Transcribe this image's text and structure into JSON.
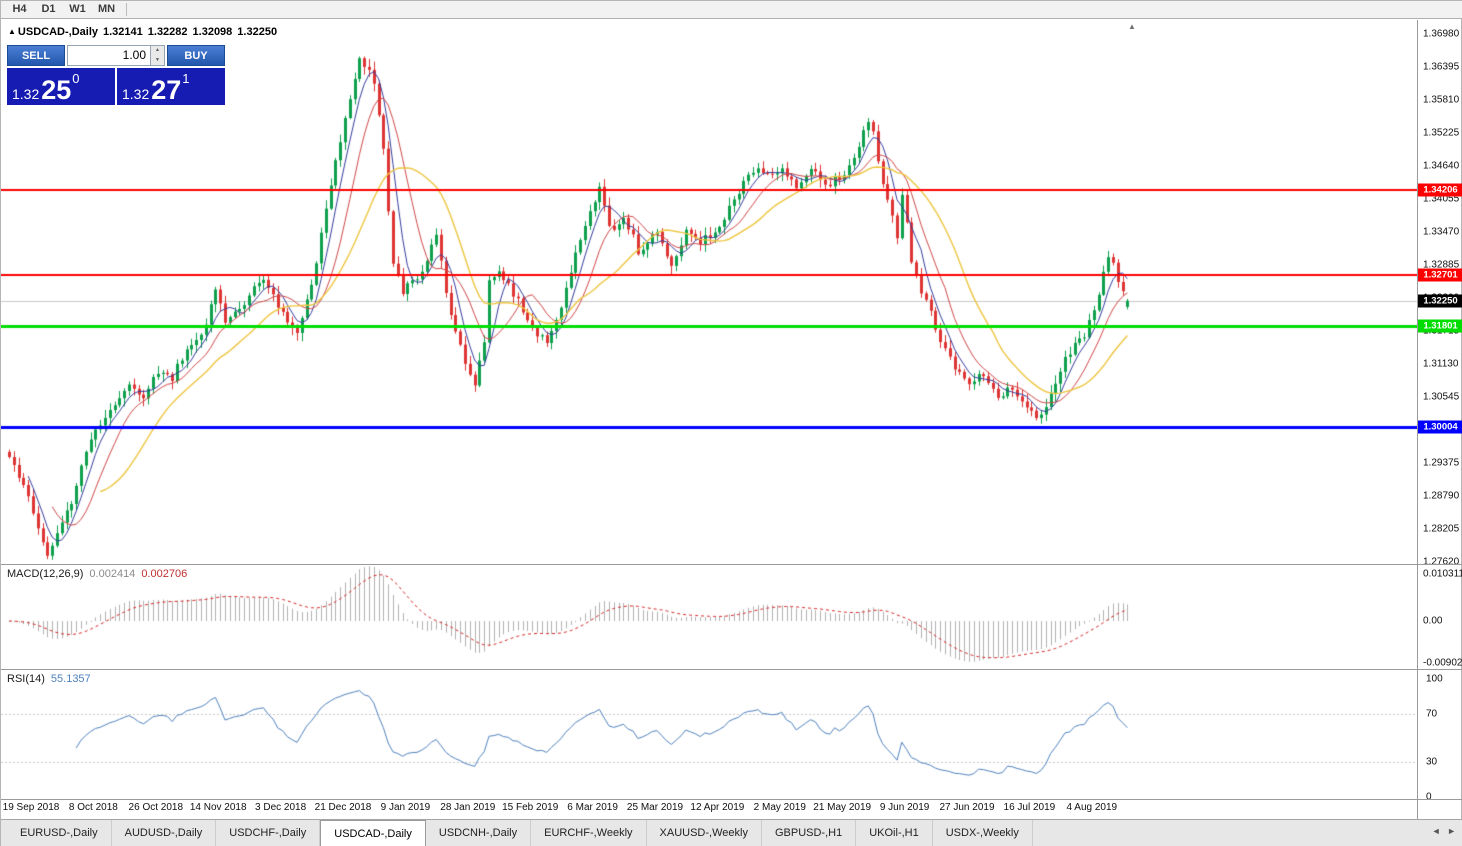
{
  "toolbar": {
    "timeframes": [
      "H4",
      "D1",
      "W1",
      "MN"
    ]
  },
  "icons": {
    "symbol_marker": "▲",
    "shift_marker": "▲",
    "spin_up": "▲",
    "spin_down": "▼",
    "tab_scroll_left": "◄",
    "tab_scroll_right": "►"
  },
  "chart": {
    "title": {
      "symbol": "USDCAD-,Daily",
      "open": "1.32141",
      "high": "1.32282",
      "low": "1.32098",
      "close": "1.32250"
    },
    "price_axis": {
      "labels": [
        "1.36980",
        "1.36395",
        "1.35810",
        "1.35225",
        "1.34640",
        "1.34055",
        "1.33470",
        "1.32885",
        "1.32300",
        "1.31715",
        "1.31130",
        "1.30545",
        "1.29960",
        "1.29375",
        "1.28790",
        "1.28205",
        "1.27620"
      ]
    },
    "hlines": [
      {
        "price": 1.34206,
        "label": "1.34206",
        "color": "#ff0000",
        "thickness": 2
      },
      {
        "price": 1.32701,
        "label": "1.32701",
        "color": "#ff0000",
        "thickness": 2
      },
      {
        "price": 1.31801,
        "label": "1.31801",
        "color": "#00dd00",
        "thickness": 3
      },
      {
        "price": 1.30004,
        "label": "1.30004",
        "color": "#0000ff",
        "thickness": 3
      }
    ],
    "current_price": {
      "value": 1.3225,
      "label": "1.32250",
      "badge_bg": "#000000",
      "line_color": "#c8c8c8"
    }
  },
  "chart_data": {
    "type": "candlestick",
    "symbol": "USDCAD",
    "timeframe": "Daily",
    "count": 234,
    "bull_color": "#0ea04c",
    "bear_color": "#de3434",
    "x_labels": [
      "19 Sep 2018",
      "8 Oct 2018",
      "26 Oct 2018",
      "14 Nov 2018",
      "3 Dec 2018",
      "21 Dec 2018",
      "9 Jan 2019",
      "28 Jan 2019",
      "15 Feb 2019",
      "6 Mar 2019",
      "25 Mar 2019",
      "12 Apr 2019",
      "2 May 2019",
      "21 May 2019",
      "9 Jun 2019",
      "27 Jun 2019",
      "16 Jul 2019",
      "4 Aug 2019"
    ],
    "price_anchors": [
      [
        0,
        1.2945
      ],
      [
        2,
        1.2912
      ],
      [
        4,
        1.2882
      ],
      [
        6,
        1.282
      ],
      [
        8,
        1.2775
      ],
      [
        10,
        1.2812
      ],
      [
        13,
        1.2872
      ],
      [
        17,
        1.2985
      ],
      [
        21,
        1.303
      ],
      [
        25,
        1.3078
      ],
      [
        28,
        1.3058
      ],
      [
        31,
        1.31
      ],
      [
        34,
        1.3088
      ],
      [
        36,
        1.3125
      ],
      [
        40,
        1.316
      ],
      [
        43,
        1.3248
      ],
      [
        45,
        1.3185
      ],
      [
        48,
        1.3208
      ],
      [
        50,
        1.3238
      ],
      [
        53,
        1.326
      ],
      [
        55,
        1.3232
      ],
      [
        57,
        1.3205
      ],
      [
        60,
        1.3165
      ],
      [
        62,
        1.3228
      ],
      [
        64,
        1.329
      ],
      [
        66,
        1.3388
      ],
      [
        68,
        1.3468
      ],
      [
        70,
        1.355
      ],
      [
        72,
        1.3622
      ],
      [
        73,
        1.3652
      ],
      [
        75,
        1.3628
      ],
      [
        76,
        1.3605
      ],
      [
        78,
        1.3488
      ],
      [
        80,
        1.3288
      ],
      [
        82,
        1.3242
      ],
      [
        84,
        1.3262
      ],
      [
        86,
        1.3278
      ],
      [
        88,
        1.332
      ],
      [
        89,
        1.3345
      ],
      [
        91,
        1.3242
      ],
      [
        93,
        1.3165
      ],
      [
        95,
        1.312
      ],
      [
        97,
        1.3078
      ],
      [
        99,
        1.3148
      ],
      [
        100,
        1.3265
      ],
      [
        102,
        1.328
      ],
      [
        104,
        1.3256
      ],
      [
        106,
        1.3222
      ],
      [
        108,
        1.3188
      ],
      [
        110,
        1.3165
      ],
      [
        112,
        1.3148
      ],
      [
        114,
        1.3185
      ],
      [
        116,
        1.3248
      ],
      [
        118,
        1.331
      ],
      [
        120,
        1.3355
      ],
      [
        122,
        1.34
      ],
      [
        123,
        1.3425
      ],
      [
        125,
        1.3352
      ],
      [
        127,
        1.3362
      ],
      [
        128,
        1.3372
      ],
      [
        130,
        1.334
      ],
      [
        131,
        1.3312
      ],
      [
        133,
        1.333
      ],
      [
        135,
        1.3342
      ],
      [
        137,
        1.3308
      ],
      [
        138,
        1.3292
      ],
      [
        140,
        1.333
      ],
      [
        141,
        1.3352
      ],
      [
        143,
        1.3338
      ],
      [
        144,
        1.3328
      ],
      [
        146,
        1.3342
      ],
      [
        148,
        1.3358
      ],
      [
        150,
        1.339
      ],
      [
        152,
        1.342
      ],
      [
        154,
        1.3445
      ],
      [
        156,
        1.346
      ],
      [
        158,
        1.3445
      ],
      [
        161,
        1.3455
      ],
      [
        163,
        1.344
      ],
      [
        164,
        1.3432
      ],
      [
        166,
        1.3445
      ],
      [
        167,
        1.3458
      ],
      [
        169,
        1.344
      ],
      [
        170,
        1.3428
      ],
      [
        172,
        1.3442
      ],
      [
        174,
        1.345
      ],
      [
        176,
        1.3482
      ],
      [
        177,
        1.3505
      ],
      [
        179,
        1.3545
      ],
      [
        180,
        1.3518
      ],
      [
        182,
        1.3432
      ],
      [
        184,
        1.3372
      ],
      [
        185,
        1.3332
      ],
      [
        186,
        1.3418
      ],
      [
        188,
        1.3298
      ],
      [
        190,
        1.3245
      ],
      [
        192,
        1.3205
      ],
      [
        194,
        1.3152
      ],
      [
        196,
        1.3122
      ],
      [
        198,
        1.3098
      ],
      [
        200,
        1.3075
      ],
      [
        202,
        1.309
      ],
      [
        204,
        1.308
      ],
      [
        206,
        1.3055
      ],
      [
        208,
        1.307
      ],
      [
        210,
        1.3058
      ],
      [
        212,
        1.3032
      ],
      [
        214,
        1.3022
      ],
      [
        215,
        1.3018
      ],
      [
        217,
        1.3058
      ],
      [
        218,
        1.3085
      ],
      [
        220,
        1.312
      ],
      [
        222,
        1.3145
      ],
      [
        224,
        1.3162
      ],
      [
        226,
        1.3205
      ],
      [
        227,
        1.3232
      ],
      [
        228,
        1.3272
      ],
      [
        229,
        1.3308
      ],
      [
        230,
        1.3288
      ],
      [
        231,
        1.3256
      ],
      [
        232,
        1.324
      ],
      [
        233,
        1.3225
      ]
    ],
    "last_candle": {
      "o": 1.32141,
      "h": 1.32282,
      "l": 1.32098,
      "c": 1.3225
    },
    "overlays": [
      {
        "name": "ma-fast",
        "period": 5,
        "color": "#343c9b",
        "width": 1
      },
      {
        "name": "ma-mid",
        "period": 10,
        "color": "#cf4646",
        "width": 1
      },
      {
        "name": "ma-slow",
        "period": 20,
        "color": "#edc53f",
        "width": 1.4
      }
    ]
  },
  "macd": {
    "label": "MACD(12,26,9)",
    "value_main": "0.002414",
    "value_signal": "0.002706",
    "axis_labels": [
      "0.010311",
      "0.00",
      "-0.0090203"
    ],
    "fast": 12,
    "slow": 26,
    "signal": 9,
    "hist_color": "#b0b0b0",
    "signal_color": "#d42626"
  },
  "rsi": {
    "label": "RSI(14)",
    "value": "55.1357",
    "period": 14,
    "axis_labels": [
      "100",
      "70",
      "30",
      "0"
    ],
    "levels": [
      70,
      30
    ],
    "line_color": "#4f81bd",
    "level_color": "#c9c9c9"
  },
  "trade_widget": {
    "sell_label": "SELL",
    "buy_label": "BUY",
    "volume": "1.00",
    "sell_price": {
      "base": "1.32",
      "pips": "25",
      "point": "0"
    },
    "buy_price": {
      "base": "1.32",
      "pips": "27",
      "point": "1"
    }
  },
  "tabs": {
    "active_index": 3,
    "items": [
      "EURUSD-,Daily",
      "AUDUSD-,Daily",
      "USDCHF-,Daily",
      "USDCAD-,Daily",
      "USDCNH-,Daily",
      "EURCHF-,Weekly",
      "XAUUSD-,Weekly",
      "GBPUSD-,H1",
      "UKOil-,H1",
      "USDX-,Weekly"
    ]
  }
}
